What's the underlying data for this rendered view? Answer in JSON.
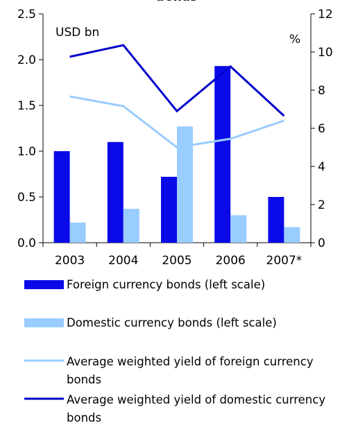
{
  "chart_data": {
    "type": "bar",
    "title": "bonds",
    "categories": [
      "2003",
      "2004",
      "2005",
      "2006",
      "2007*"
    ],
    "y_axis_label": "USD bn",
    "y2_axis_label": "%",
    "series": [
      {
        "name": "Foreign currency bonds (left scale)",
        "type": "bar",
        "color": "#0a0ae8",
        "values": [
          1.0,
          1.1,
          0.72,
          1.93,
          0.5
        ]
      },
      {
        "name": "Domestic currency bonds (left scale)",
        "type": "bar",
        "color": "#99ccff",
        "values": [
          0.22,
          0.37,
          1.27,
          0.3,
          0.17
        ]
      },
      {
        "name": "Average weighted yield of foreign currency bonds",
        "type": "line",
        "axis": "y2",
        "color": "#99ccff",
        "values": [
          7.67,
          7.16,
          5.0,
          5.45,
          6.4
        ]
      },
      {
        "name": "Average weighted yield of domestic currency bonds",
        "type": "line",
        "axis": "y2",
        "color": "#0000cc",
        "values": [
          9.75,
          10.36,
          6.9,
          9.24,
          6.65
        ]
      }
    ],
    "ylim": [
      0,
      2.5
    ],
    "yticks": [
      {
        "value": 0,
        "label": "0.0"
      },
      0.5,
      {
        "value": 1,
        "label": "1.0"
      },
      1.5,
      {
        "value": 2,
        "label": "2.0"
      },
      2.5
    ],
    "y2lim": [
      0,
      12
    ],
    "y2ticks": [
      0,
      2,
      4,
      6,
      8,
      10,
      12
    ],
    "grid": false
  }
}
